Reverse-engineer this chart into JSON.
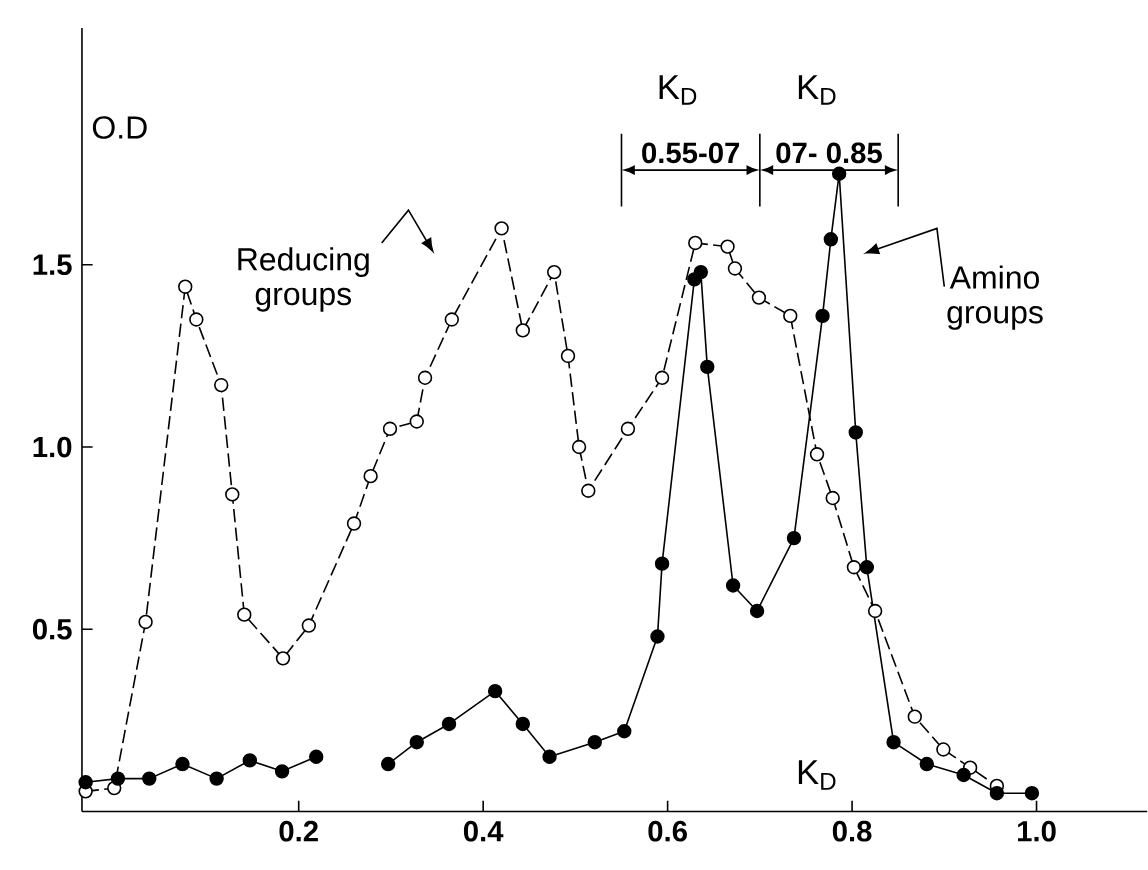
{
  "chart_data": {
    "type": "line",
    "ylabel": "O.D",
    "xlabel": "K$_{D}$",
    "xlim": [
      -0.035,
      1.12
    ],
    "ylim": [
      0,
      2.15
    ],
    "xticks": [
      0.2,
      0.4,
      0.6,
      0.8,
      {
        "value": 1.0,
        "label": "1.0"
      }
    ],
    "yticks": [
      0.5,
      {
        "value": 1.0,
        "label": "1.0"
      },
      1.5
    ],
    "marker": "circle",
    "grid": false,
    "series": [
      {
        "color": "#000000",
        "line_style": "dashed",
        "x": [
          -0.031,
          0.0,
          0.034,
          0.077,
          0.089,
          0.116,
          0.128,
          0.141,
          0.183,
          0.211,
          0.26,
          0.278,
          0.299,
          0.328,
          0.337,
          0.366,
          0.42,
          0.443,
          0.477,
          0.492,
          0.504,
          0.514,
          0.557,
          0.594,
          0.63,
          0.665,
          0.673,
          0.699,
          0.733,
          0.762,
          0.779,
          0.802,
          0.825,
          0.868,
          0.899,
          0.928,
          0.957
        ],
        "values": [
          0.055,
          0.064,
          0.52,
          1.44,
          1.35,
          1.17,
          0.87,
          0.54,
          0.42,
          0.51,
          0.79,
          0.92,
          1.05,
          1.07,
          1.19,
          1.35,
          1.6,
          1.32,
          1.48,
          1.25,
          1.0,
          0.88,
          1.05,
          1.19,
          1.56,
          1.55,
          1.49,
          1.41,
          1.36,
          0.98,
          0.86,
          0.67,
          0.55,
          0.26,
          0.17,
          0.12,
          0.07
        ]
      },
      {
        "color": "#000000",
        "line_style": "solid",
        "x": [
          -0.031,
          0.004,
          0.038,
          0.074,
          0.111,
          0.147,
          0.182,
          0.219,
          0.26,
          0.297,
          0.328,
          0.363,
          0.413,
          0.443,
          0.472,
          0.521,
          0.553,
          0.589,
          0.594,
          0.629,
          0.636,
          0.643,
          0.671,
          0.697,
          0.737,
          0.768,
          0.777,
          0.786,
          0.804,
          0.816,
          0.845,
          0.881,
          0.921,
          0.957,
          0.995
        ],
        "values": [
          0.08,
          0.09,
          0.09,
          0.13,
          0.09,
          0.14,
          0.11,
          0.15,
          null,
          0.13,
          0.19,
          0.24,
          0.33,
          0.24,
          0.15,
          0.19,
          0.22,
          0.48,
          0.68,
          1.46,
          1.48,
          1.22,
          0.62,
          0.55,
          0.75,
          1.36,
          1.57,
          1.75,
          1.04,
          0.67,
          0.19,
          0.13,
          0.1,
          0.05,
          0.05
        ]
      }
    ],
    "annotations": [
      "Reducing groups",
      "Amino groups",
      "K$_{D}$",
      "K$_{D}$",
      "0.55-07",
      "07- 0.85"
    ]
  }
}
